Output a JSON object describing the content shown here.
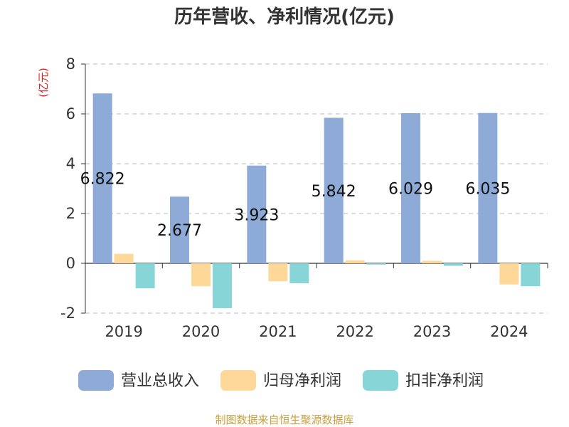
{
  "chart_data": {
    "type": "bar",
    "title": "历年营收、净利情况(亿元)",
    "unit_label": "(亿元)",
    "categories": [
      "2019",
      "2020",
      "2021",
      "2022",
      "2023",
      "2024"
    ],
    "ylim": [
      -2,
      8
    ],
    "yticks": [
      -2,
      0,
      2,
      4,
      6,
      8
    ],
    "grid": true,
    "legend_position": "bottom",
    "series": [
      {
        "name": "营业总收入",
        "color": "#8eabd8",
        "values": [
          6.822,
          2.677,
          3.923,
          5.842,
          6.029,
          6.035
        ],
        "labels": [
          "6.822",
          "2.677",
          "3.923",
          "5.842",
          "6.029",
          "6.035"
        ]
      },
      {
        "name": "归母净利润",
        "color": "#fdd898",
        "values": [
          0.38,
          -0.92,
          -0.72,
          0.12,
          0.1,
          -0.85
        ]
      },
      {
        "name": "扣非净利润",
        "color": "#88d5d8",
        "values": [
          -1.0,
          -1.8,
          -0.8,
          -0.05,
          -0.1,
          -0.92
        ]
      }
    ]
  },
  "footer": {
    "source": "制图数据来自恒生聚源数据库"
  }
}
